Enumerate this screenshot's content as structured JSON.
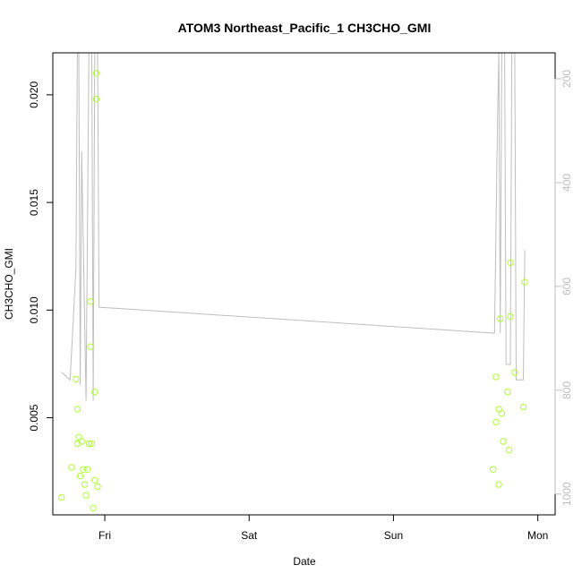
{
  "chart_data": {
    "type": "scatter",
    "title": "ATOM3 Northeast_Pacific_1 CH3CHO_GMI",
    "xlabel": "Date",
    "ylabel": "CH3CHO_GMI",
    "x_ticks": [
      "Fri",
      "Sat",
      "Sun",
      "Mon"
    ],
    "x_tick_positions_days": [
      1,
      2,
      3,
      4
    ],
    "x_range_days": [
      0.64,
      4.12
    ],
    "y_ticks": [
      0.005,
      0.01,
      0.015,
      0.02
    ],
    "y_ticks_labels": [
      "0.005",
      "0.010",
      "0.015",
      "0.020"
    ],
    "ylim": [
      0.00049,
      0.02195
    ],
    "y2_ticks": [
      200,
      400,
      600,
      800,
      1000
    ],
    "y2_ticks_labels": [
      "200",
      "400",
      "600",
      "800",
      "1000"
    ],
    "y2lim": [
      1040,
      150
    ],
    "y2_reversed": true,
    "colors": {
      "points": "#ADFF2F",
      "line": "#BEBEBE",
      "right_axis": "#BEBEBE",
      "frame": "#000000"
    },
    "series": [
      {
        "kind": "points",
        "values_xy": [
          [
            0.7,
            0.0013
          ],
          [
            0.77,
            0.0027
          ],
          [
            0.8,
            0.0068
          ],
          [
            0.81,
            0.0054
          ],
          [
            0.81,
            0.0038
          ],
          [
            0.82,
            0.0041
          ],
          [
            0.83,
            0.0023
          ],
          [
            0.84,
            0.0039
          ],
          [
            0.85,
            0.0026
          ],
          [
            0.86,
            0.0019
          ],
          [
            0.87,
            0.0014
          ],
          [
            0.88,
            0.0026
          ],
          [
            0.89,
            0.0038
          ],
          [
            0.9,
            0.0104
          ],
          [
            0.9,
            0.0083
          ],
          [
            0.91,
            0.0038
          ],
          [
            0.92,
            0.0008
          ],
          [
            0.93,
            0.0021
          ],
          [
            0.93,
            0.0062
          ],
          [
            0.94,
            0.021
          ],
          [
            0.94,
            0.0198
          ],
          [
            0.95,
            0.0018
          ],
          [
            3.69,
            0.0026
          ],
          [
            3.71,
            0.0069
          ],
          [
            3.71,
            0.0048
          ],
          [
            3.73,
            0.0054
          ],
          [
            3.73,
            0.0019
          ],
          [
            3.74,
            0.0096
          ],
          [
            3.75,
            0.0052
          ],
          [
            3.76,
            0.0039
          ],
          [
            3.79,
            0.0062
          ],
          [
            3.8,
            0.0035
          ],
          [
            3.81,
            0.0097
          ],
          [
            3.81,
            0.0122
          ],
          [
            3.84,
            0.0071
          ],
          [
            3.9,
            0.0055
          ],
          [
            3.91,
            0.0113
          ]
        ]
      },
      {
        "kind": "line",
        "axis": "right",
        "values_xy": [
          [
            0.7,
            765
          ],
          [
            0.76,
            780
          ],
          [
            0.8,
            565
          ],
          [
            0.81,
            150
          ],
          [
            0.82,
            150
          ],
          [
            0.83,
            790
          ],
          [
            0.84,
            340
          ],
          [
            0.87,
            820
          ],
          [
            0.89,
            150
          ],
          [
            0.9,
            150
          ],
          [
            0.91,
            150
          ],
          [
            0.92,
            820
          ],
          [
            0.93,
            150
          ],
          [
            0.94,
            150
          ],
          [
            0.95,
            150
          ],
          [
            0.96,
            640
          ],
          [
            3.7,
            690
          ],
          [
            3.72,
            300
          ],
          [
            3.73,
            150
          ],
          [
            3.74,
            690
          ],
          [
            3.75,
            150
          ],
          [
            3.77,
            150
          ],
          [
            3.78,
            750
          ],
          [
            3.81,
            750
          ],
          [
            3.82,
            150
          ],
          [
            3.84,
            150
          ],
          [
            3.85,
            780
          ],
          [
            3.9,
            780
          ],
          [
            3.91,
            530
          ]
        ]
      }
    ],
    "grid": false,
    "legend": "none"
  }
}
